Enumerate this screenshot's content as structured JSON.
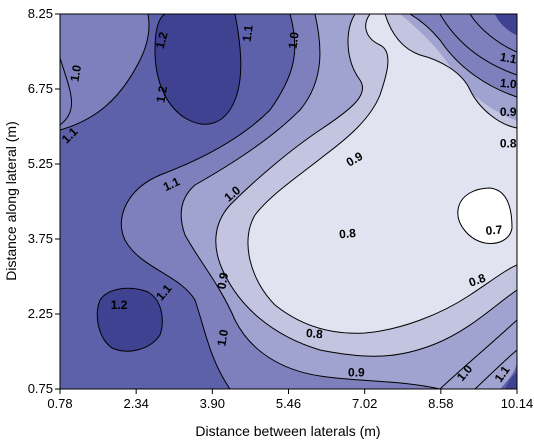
{
  "chart_data": {
    "type": "heatmap",
    "subtype": "filled-contour",
    "title": "",
    "xlabel": "Distance between laterals (m)",
    "ylabel": "Distance along lateral (m)",
    "xlim": [
      0.78,
      10.14
    ],
    "ylim": [
      0.75,
      8.25
    ],
    "x_ticks": [
      "0.78",
      "2.34",
      "3.90",
      "5.46",
      "7.02",
      "8.58",
      "10.14"
    ],
    "y_ticks": [
      "0.75",
      "2.25",
      "3.75",
      "5.25",
      "6.75",
      "8.25"
    ],
    "levels": [
      0.7,
      0.8,
      0.9,
      1.0,
      1.1,
      1.2
    ],
    "level_colors": {
      "below_0.7": "#ffffff",
      "0.7-0.8": "#e2e3f0",
      "0.8-0.9": "#c3c5e0",
      "0.9-1.0": "#a0a2cf",
      "1.0-1.1": "#7d80bc",
      "1.1-1.2": "#5d61aa",
      "above_1.2": "#3e4290"
    },
    "contour_labels": [
      {
        "text": "1.0",
        "x": 1.12,
        "y": 7.06
      },
      {
        "text": "1.2",
        "x": 2.88,
        "y": 7.72
      },
      {
        "text": "1.2",
        "x": 2.88,
        "y": 6.64
      },
      {
        "text": "1.1",
        "x": 4.64,
        "y": 7.86
      },
      {
        "text": "1.0",
        "x": 5.58,
        "y": 7.72
      },
      {
        "text": "1.1",
        "x": 9.96,
        "y": 7.35
      },
      {
        "text": "1.0",
        "x": 9.96,
        "y": 6.84
      },
      {
        "text": "0.9",
        "x": 9.96,
        "y": 6.27
      },
      {
        "text": "0.8",
        "x": 9.96,
        "y": 5.64
      },
      {
        "text": "1.1",
        "x": 0.99,
        "y": 5.81
      },
      {
        "text": "1.1",
        "x": 3.07,
        "y": 4.83
      },
      {
        "text": "1.0",
        "x": 4.32,
        "y": 4.64
      },
      {
        "text": "0.9",
        "x": 6.82,
        "y": 5.33
      },
      {
        "text": "0.8",
        "x": 6.67,
        "y": 3.84
      },
      {
        "text": "0.7",
        "x": 9.67,
        "y": 3.91
      },
      {
        "text": "0.9",
        "x": 4.13,
        "y": 2.91
      },
      {
        "text": "1.1",
        "x": 2.92,
        "y": 2.67
      },
      {
        "text": "1.2",
        "x": 1.99,
        "y": 2.41
      },
      {
        "text": "1.0",
        "x": 4.13,
        "y": 1.77
      },
      {
        "text": "0.8",
        "x": 5.99,
        "y": 1.84
      },
      {
        "text": "0.8",
        "x": 9.33,
        "y": 2.91
      },
      {
        "text": "0.9",
        "x": 6.85,
        "y": 1.06
      },
      {
        "text": "1.0",
        "x": 9.08,
        "y": 1.06
      },
      {
        "text": "1.1",
        "x": 9.85,
        "y": 1.04
      }
    ],
    "grid": false,
    "legend": "none"
  }
}
